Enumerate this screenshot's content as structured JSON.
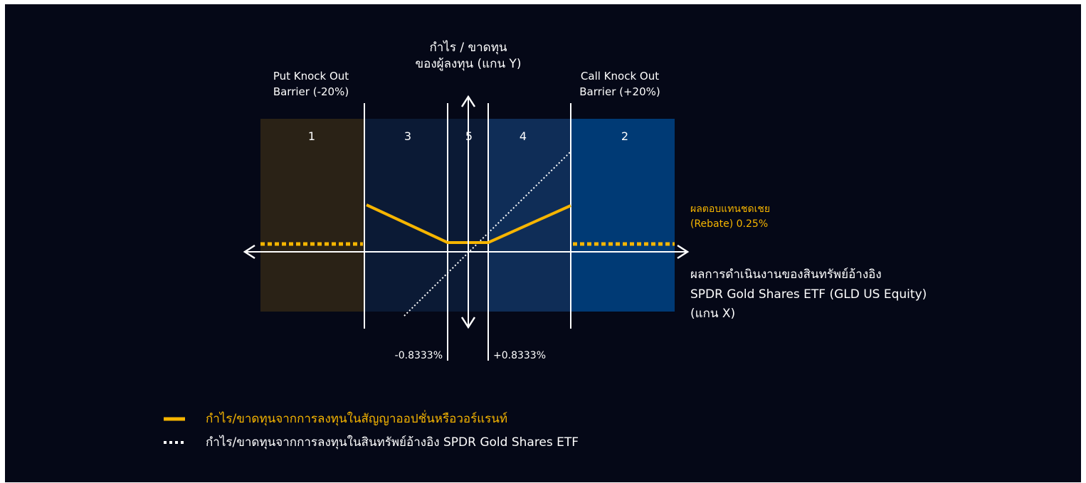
{
  "y_axis": {
    "title_line1": "กำไร / ขาดทุน",
    "title_line2": "ของผู้ลงทุน (แกน Y)"
  },
  "barriers": {
    "put": {
      "line1": "Put Knock Out",
      "line2": "Barrier (-20%)"
    },
    "call": {
      "line1": "Call Knock Out",
      "line2": "Barrier (+20%)"
    }
  },
  "zones": [
    {
      "id": "1",
      "label": "1",
      "color": "#2a2216"
    },
    {
      "id": "3",
      "label": "3",
      "color": "#0b1a35"
    },
    {
      "id": "5",
      "label": "5",
      "color": "#0b1a35"
    },
    {
      "id": "4",
      "label": "4",
      "color": "#0f2d57"
    },
    {
      "id": "2",
      "label": "2",
      "color": "#003a75"
    }
  ],
  "thresholds": {
    "lower": "-0.8333%",
    "upper": "+0.8333%"
  },
  "rebate": {
    "line1": "ผลตอบแทนชดเชย",
    "line2": "(Rebate) 0.25%"
  },
  "x_axis": {
    "line1": "ผลการดำเนินงานของสินทรัพย์อ้างอิง",
    "line2": "SPDR Gold Shares ETF (GLD US Equity)",
    "line3": "(แกน X)"
  },
  "legend": [
    {
      "label": "กำไร/ขาดทุนจากการลงทุนในสัญญาออปชั่นหรือวอร์แรนท์",
      "style": "solid",
      "color": "#f6b500"
    },
    {
      "label": "กำไร/ขาดทุนจากการลงทุนในสินทรัพย์อ้างอิง SPDR Gold Shares ETF",
      "style": "dotted",
      "color": "#ffffff"
    }
  ],
  "colors": {
    "background": "#050817",
    "payoff": "#f6b500",
    "axis": "#ffffff"
  }
}
